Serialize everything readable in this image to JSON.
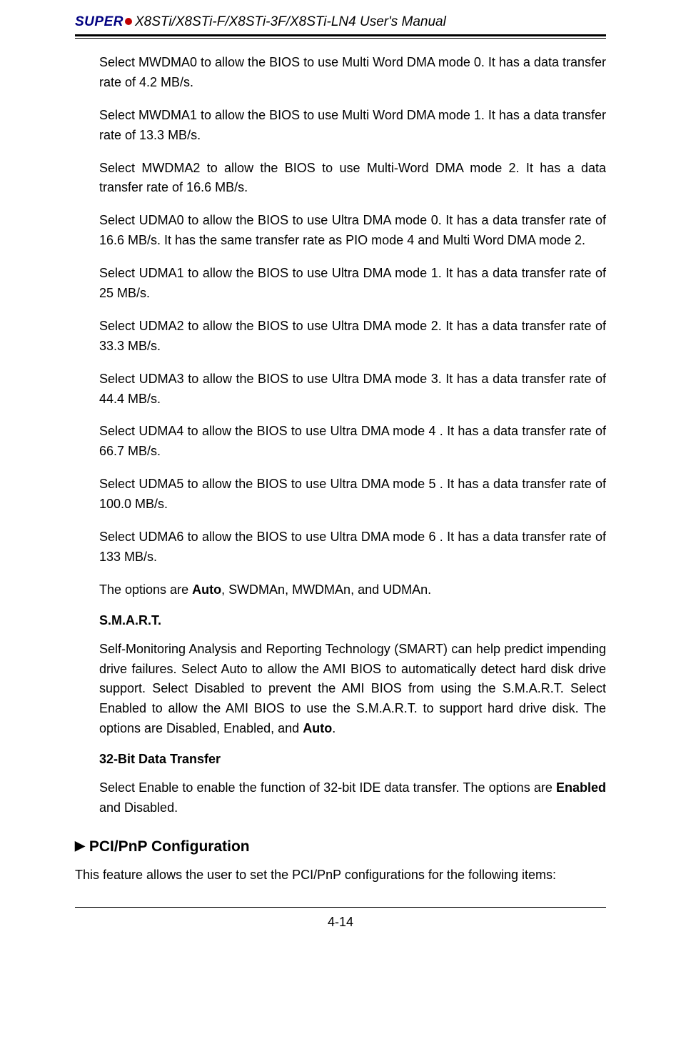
{
  "header": {
    "brand_prefix": "SUPER",
    "model_line": "X8STi/X8STi-F/X8STi-3F/X8STi-LN4 User's Manual"
  },
  "paragraphs": {
    "mwdma0": "Select MWDMA0 to allow the BIOS to use Multi Word DMA mode 0. It has a data transfer rate of 4.2 MB/s.",
    "mwdma1": "Select MWDMA1 to allow the BIOS to use Multi Word DMA mode 1. It has a data transfer rate of 13.3 MB/s.",
    "mwdma2": "Select MWDMA2 to allow the BIOS to use Multi-Word DMA mode 2. It has a data transfer rate of 16.6 MB/s.",
    "udma0": "Select UDMA0 to allow the BIOS to use Ultra DMA mode 0. It has a data transfer rate of 16.6 MB/s. It has the same transfer rate as PIO mode 4 and Multi Word DMA mode 2.",
    "udma1": "Select UDMA1 to allow the BIOS to use Ultra DMA mode 1. It has a data transfer rate of 25 MB/s.",
    "udma2": "Select UDMA2 to allow the BIOS to use Ultra DMA mode 2. It has a data transfer rate of 33.3 MB/s.",
    "udma3": "Select UDMA3 to allow the BIOS to use Ultra DMA mode 3. It has a data transfer rate of 44.4 MB/s.",
    "udma4": "Select UDMA4 to allow the BIOS to use Ultra DMA mode 4 . It has a data transfer rate of 66.7 MB/s.",
    "udma5": "Select UDMA5 to allow the BIOS to use Ultra DMA mode 5 . It has a data transfer rate of 100.0 MB/s.",
    "udma6": "Select UDMA6 to allow the BIOS to use Ultra DMA mode 6 . It has a data transfer rate of 133 MB/s.",
    "options_pre": "The  options are ",
    "options_bold": "Auto",
    "options_post": ", SWDMAn, MWDMAn, and UDMAn.",
    "smart_head": "S.M.A.R.T.",
    "smart_body_pre": "Self-Monitoring Analysis and Reporting Technology (SMART) can help predict impending drive failures. Select Auto to allow the AMI BIOS to automatically detect hard disk drive support. Select Disabled to prevent the AMI BIOS from using the S.M.A.R.T. Select Enabled to allow the AMI BIOS to use the S.M.A.R.T. to support hard drive disk. The options are Disabled, Enabled, and ",
    "smart_body_bold": "Auto",
    "smart_body_post": ".",
    "bit32_head": "32-Bit Data Transfer",
    "bit32_pre": "Select Enable to enable the function of 32-bit IDE data transfer. The options are ",
    "bit32_bold": "Enabled",
    "bit32_post": " and Disabled.",
    "pci_head": "PCI/PnP Configuration",
    "pci_body": "This feature allows the user to set the PCI/PnP configurations for the following items:"
  },
  "footer": {
    "page_num": "4-14"
  },
  "style": {
    "brand_color": "#000080",
    "dot_color": "#c00000",
    "text_color": "#000000",
    "font_family": "Arial, Helvetica, sans-serif"
  }
}
